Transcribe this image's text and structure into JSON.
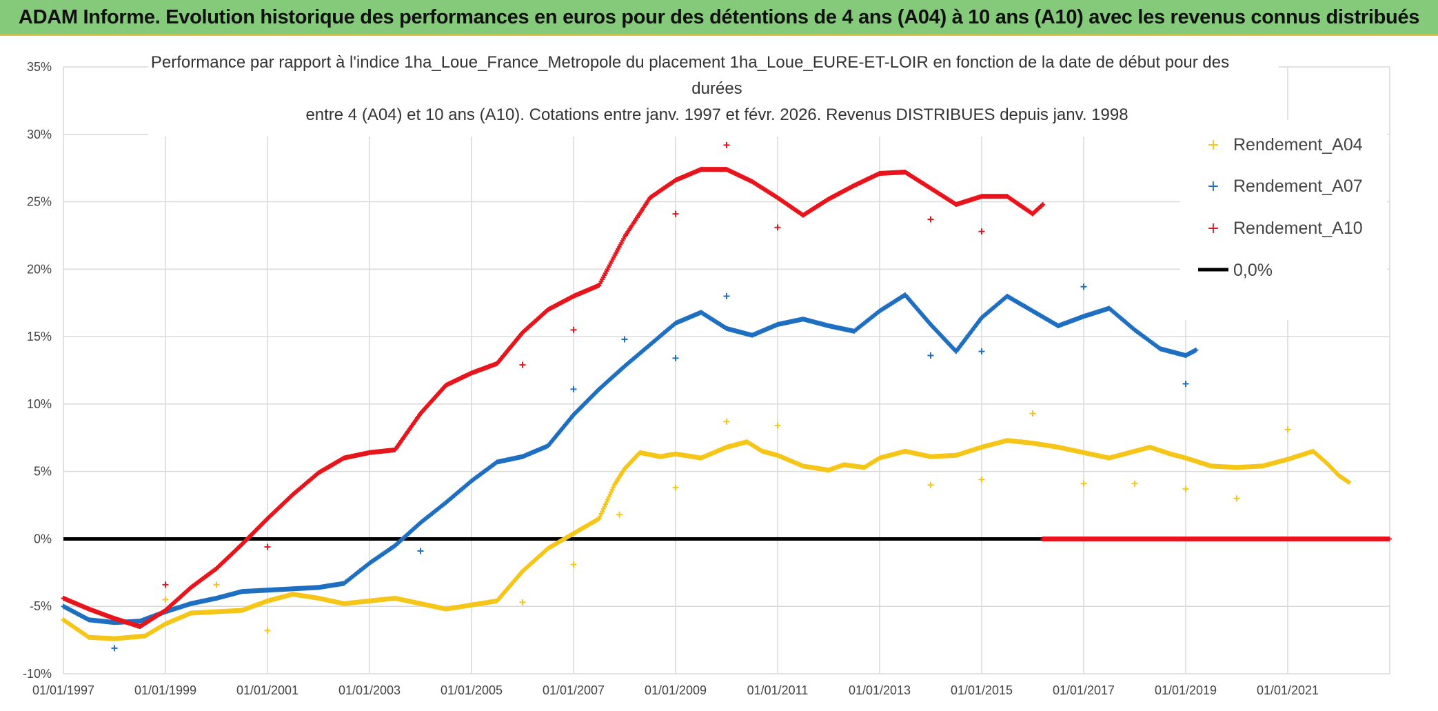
{
  "header": {
    "title": "ADAM Informe. Evolution historique des performances en euros pour des détentions de 4 ans (A04) à 10 ans (A10) avec les revenus connus distribués"
  },
  "chart_data": {
    "type": "scatter",
    "title_lines": [
      "Performance par rapport à l'indice 1ha_Loue_France_Metropole  du placement 1ha_Loue_EURE-ET-LOIR en fonction de la date de début pour des",
      "durées",
      "entre 4 (A04) et 10 ans (A10). Cotations entre janv. 1997 et févr. 2026. Revenus DISTRIBUES depuis janv. 1998"
    ],
    "xlabel": "",
    "ylabel": "",
    "xlim": [
      1997.0,
      2023.0
    ],
    "ylim": [
      -10,
      35
    ],
    "x_ticks": [
      1997,
      1999,
      2001,
      2003,
      2005,
      2007,
      2009,
      2011,
      2013,
      2015,
      2017,
      2019,
      2021
    ],
    "x_tick_labels": [
      "01/01/1997",
      "01/01/1999",
      "01/01/2001",
      "01/01/2003",
      "01/01/2005",
      "01/01/2007",
      "01/01/2009",
      "01/01/2011",
      "01/01/2013",
      "01/01/2015",
      "01/01/2017",
      "01/01/2019",
      "01/01/2021"
    ],
    "y_ticks": [
      -10,
      -5,
      0,
      5,
      10,
      15,
      20,
      25,
      30,
      35
    ],
    "y_tick_labels": [
      "-10%",
      "-5%",
      "0%",
      "5%",
      "10%",
      "15%",
      "20%",
      "25%",
      "30%",
      "35%"
    ],
    "grid": true,
    "legend_position": "top-right",
    "series": [
      {
        "name": "Rendement_A04",
        "color": "#f5c518",
        "marker": "plus",
        "points": [
          [
            1997.0,
            -6.0
          ],
          [
            1997.5,
            -7.3
          ],
          [
            1998.0,
            -7.4
          ],
          [
            1998.3,
            -7.3
          ],
          [
            1998.6,
            -7.2
          ],
          [
            1999.0,
            -6.3
          ],
          [
            1999.5,
            -5.5
          ],
          [
            2000.0,
            -5.4
          ],
          [
            2000.5,
            -5.3
          ],
          [
            2001.0,
            -4.6
          ],
          [
            2001.5,
            -4.1
          ],
          [
            2002.0,
            -4.4
          ],
          [
            2002.5,
            -4.8
          ],
          [
            2003.0,
            -4.6
          ],
          [
            2003.5,
            -4.4
          ],
          [
            2004.0,
            -4.8
          ],
          [
            2004.5,
            -5.2
          ],
          [
            2005.0,
            -4.9
          ],
          [
            2005.5,
            -4.6
          ],
          [
            2006.0,
            -2.4
          ],
          [
            2006.5,
            -0.7
          ],
          [
            2007.0,
            0.4
          ],
          [
            2007.5,
            1.5
          ],
          [
            2007.8,
            4.0
          ],
          [
            2008.0,
            5.2
          ],
          [
            2008.3,
            6.4
          ],
          [
            2008.7,
            6.1
          ],
          [
            2009.0,
            6.3
          ],
          [
            2009.5,
            6.0
          ],
          [
            2010.0,
            6.8
          ],
          [
            2010.4,
            7.2
          ],
          [
            2010.7,
            6.5
          ],
          [
            2011.0,
            6.2
          ],
          [
            2011.5,
            5.4
          ],
          [
            2012.0,
            5.1
          ],
          [
            2012.3,
            5.5
          ],
          [
            2012.7,
            5.3
          ],
          [
            2013.0,
            6.0
          ],
          [
            2013.5,
            6.5
          ],
          [
            2014.0,
            6.1
          ],
          [
            2014.5,
            6.2
          ],
          [
            2015.0,
            6.8
          ],
          [
            2015.5,
            7.3
          ],
          [
            2016.0,
            7.1
          ],
          [
            2016.5,
            6.8
          ],
          [
            2017.0,
            6.4
          ],
          [
            2017.5,
            6.0
          ],
          [
            2018.0,
            6.5
          ],
          [
            2018.3,
            6.8
          ],
          [
            2018.7,
            6.3
          ],
          [
            2019.0,
            6.0
          ],
          [
            2019.5,
            5.4
          ],
          [
            2020.0,
            5.3
          ],
          [
            2020.5,
            5.4
          ],
          [
            2021.0,
            5.9
          ],
          [
            2021.5,
            6.5
          ],
          [
            2021.8,
            5.5
          ],
          [
            2022.0,
            4.7
          ],
          [
            2022.2,
            4.2
          ]
        ]
      },
      {
        "name": "Rendement_A07",
        "color": "#1f6fc1",
        "marker": "plus",
        "points": [
          [
            1997.0,
            -5.0
          ],
          [
            1997.5,
            -6.0
          ],
          [
            1998.0,
            -6.2
          ],
          [
            1998.5,
            -6.1
          ],
          [
            1999.0,
            -5.4
          ],
          [
            1999.5,
            -4.8
          ],
          [
            2000.0,
            -4.4
          ],
          [
            2000.5,
            -3.9
          ],
          [
            2001.0,
            -3.8
          ],
          [
            2001.5,
            -3.7
          ],
          [
            2002.0,
            -3.6
          ],
          [
            2002.5,
            -3.3
          ],
          [
            2003.0,
            -1.8
          ],
          [
            2003.5,
            -0.5
          ],
          [
            2004.0,
            1.2
          ],
          [
            2004.5,
            2.7
          ],
          [
            2005.0,
            4.3
          ],
          [
            2005.5,
            5.7
          ],
          [
            2006.0,
            6.1
          ],
          [
            2006.5,
            6.9
          ],
          [
            2007.0,
            9.2
          ],
          [
            2007.5,
            11.1
          ],
          [
            2008.0,
            12.8
          ],
          [
            2008.5,
            14.4
          ],
          [
            2009.0,
            16.0
          ],
          [
            2009.5,
            16.8
          ],
          [
            2010.0,
            15.6
          ],
          [
            2010.5,
            15.1
          ],
          [
            2011.0,
            15.9
          ],
          [
            2011.5,
            16.3
          ],
          [
            2012.0,
            15.8
          ],
          [
            2012.5,
            15.4
          ],
          [
            2013.0,
            16.9
          ],
          [
            2013.5,
            18.1
          ],
          [
            2014.0,
            15.9
          ],
          [
            2014.5,
            13.9
          ],
          [
            2015.0,
            16.4
          ],
          [
            2015.5,
            18.0
          ],
          [
            2016.0,
            16.9
          ],
          [
            2016.5,
            15.8
          ],
          [
            2017.0,
            16.5
          ],
          [
            2017.5,
            17.1
          ],
          [
            2018.0,
            15.5
          ],
          [
            2018.5,
            14.1
          ],
          [
            2019.0,
            13.6
          ],
          [
            2019.2,
            14.0
          ]
        ]
      },
      {
        "name": "Rendement_A10",
        "color": "#e8141c",
        "marker": "plus",
        "points": [
          [
            1997.0,
            -4.4
          ],
          [
            1997.5,
            -5.2
          ],
          [
            1998.0,
            -5.9
          ],
          [
            1998.5,
            -6.5
          ],
          [
            1999.0,
            -5.3
          ],
          [
            1999.5,
            -3.6
          ],
          [
            2000.0,
            -2.2
          ],
          [
            2000.5,
            -0.4
          ],
          [
            2001.0,
            1.5
          ],
          [
            2001.5,
            3.3
          ],
          [
            2002.0,
            4.9
          ],
          [
            2002.5,
            6.0
          ],
          [
            2003.0,
            6.4
          ],
          [
            2003.5,
            6.6
          ],
          [
            2004.0,
            9.3
          ],
          [
            2004.5,
            11.4
          ],
          [
            2005.0,
            12.3
          ],
          [
            2005.5,
            13.0
          ],
          [
            2006.0,
            15.3
          ],
          [
            2006.5,
            17.0
          ],
          [
            2007.0,
            18.0
          ],
          [
            2007.5,
            18.8
          ],
          [
            2008.0,
            22.4
          ],
          [
            2008.5,
            25.3
          ],
          [
            2009.0,
            26.6
          ],
          [
            2009.5,
            27.4
          ],
          [
            2010.0,
            27.4
          ],
          [
            2010.5,
            26.5
          ],
          [
            2011.0,
            25.3
          ],
          [
            2011.5,
            24.0
          ],
          [
            2012.0,
            25.2
          ],
          [
            2012.5,
            26.2
          ],
          [
            2013.0,
            27.1
          ],
          [
            2013.5,
            27.2
          ],
          [
            2014.0,
            26.0
          ],
          [
            2014.5,
            24.8
          ],
          [
            2015.0,
            25.4
          ],
          [
            2015.5,
            25.4
          ],
          [
            2016.0,
            24.1
          ],
          [
            2016.2,
            24.8
          ]
        ]
      }
    ],
    "outliers": [
      {
        "series": "Rendement_A04",
        "points": [
          [
            1999.0,
            -4.5
          ],
          [
            2000.0,
            -3.4
          ],
          [
            2001.0,
            -6.8
          ],
          [
            2006.0,
            -4.7
          ],
          [
            2007.0,
            -1.9
          ],
          [
            2007.9,
            1.8
          ],
          [
            2009.0,
            3.8
          ],
          [
            2010.0,
            8.7
          ],
          [
            2011.0,
            8.4
          ],
          [
            2014.0,
            4.0
          ],
          [
            2015.0,
            4.4
          ],
          [
            2016.0,
            9.3
          ],
          [
            2017.0,
            4.1
          ],
          [
            2018.0,
            4.1
          ],
          [
            2019.0,
            3.7
          ],
          [
            2020.0,
            3.0
          ],
          [
            2021.0,
            8.1
          ]
        ]
      },
      {
        "series": "Rendement_A07",
        "points": [
          [
            1998.0,
            -8.1
          ],
          [
            2004.0,
            -0.9
          ],
          [
            2007.0,
            11.1
          ],
          [
            2008.0,
            14.8
          ],
          [
            2009.0,
            13.4
          ],
          [
            2010.0,
            18.0
          ],
          [
            2014.0,
            13.6
          ],
          [
            2015.0,
            13.9
          ],
          [
            2017.0,
            18.7
          ],
          [
            2019.0,
            11.5
          ]
        ]
      },
      {
        "series": "Rendement_A10",
        "points": [
          [
            1999.0,
            -3.4
          ],
          [
            2001.0,
            -0.6
          ],
          [
            2006.0,
            12.9
          ],
          [
            2007.0,
            15.5
          ],
          [
            2009.0,
            24.1
          ],
          [
            2010.0,
            29.2
          ],
          [
            2011.0,
            23.1
          ],
          [
            2014.0,
            23.7
          ],
          [
            2015.0,
            22.8
          ]
        ]
      }
    ],
    "zero_band": {
      "series": "Rendement_A10",
      "from": 2016.2,
      "to": 2023.0,
      "value": 0
    },
    "reference_line": {
      "name": "0,0%",
      "value": 0,
      "color": "#000000"
    }
  }
}
